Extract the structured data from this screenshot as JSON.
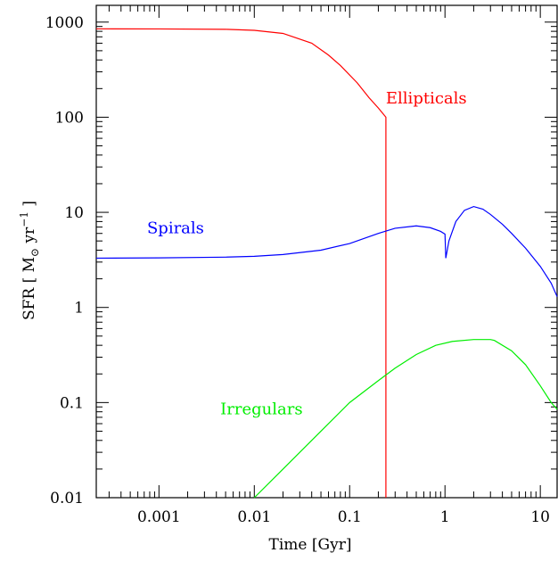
{
  "chart_data": {
    "type": "line",
    "title": "",
    "xlabel": "Time [Gyr]",
    "ylabel_parts": {
      "pre": "SFR [ M",
      "sub": "⊙",
      "mid": " yr",
      "sup": "−1",
      "post": " ]"
    },
    "xscale": "log",
    "yscale": "log",
    "xlim": [
      0.00022,
      15
    ],
    "ylim": [
      0.01,
      1500
    ],
    "grid": false,
    "legend": "none",
    "xticks": [
      {
        "value": 0.001,
        "label": "0.001"
      },
      {
        "value": 0.01,
        "label": "0.01"
      },
      {
        "value": 0.1,
        "label": "0.1"
      },
      {
        "value": 1,
        "label": "1"
      },
      {
        "value": 10,
        "label": "10"
      }
    ],
    "yticks": [
      {
        "value": 0.01,
        "label": "0.01"
      },
      {
        "value": 0.1,
        "label": "0.1"
      },
      {
        "value": 1,
        "label": "1"
      },
      {
        "value": 10,
        "label": "10"
      },
      {
        "value": 100,
        "label": "100"
      },
      {
        "value": 1000,
        "label": "1000"
      }
    ],
    "series": [
      {
        "name": "Ellipticals",
        "color": "#ff0000",
        "label_at": [
          0.24,
          140
        ],
        "points": [
          [
            0.00022,
            850
          ],
          [
            0.001,
            848
          ],
          [
            0.005,
            840
          ],
          [
            0.01,
            820
          ],
          [
            0.02,
            760
          ],
          [
            0.04,
            600
          ],
          [
            0.06,
            450
          ],
          [
            0.08,
            350
          ],
          [
            0.12,
            230
          ],
          [
            0.16,
            160
          ],
          [
            0.2,
            125
          ],
          [
            0.24,
            100
          ],
          [
            0.24,
            0.01
          ]
        ]
      },
      {
        "name": "Spirals",
        "color": "#0000ff",
        "label_at": [
          0.00075,
          6.0
        ],
        "points": [
          [
            0.00022,
            3.3
          ],
          [
            0.001,
            3.32
          ],
          [
            0.005,
            3.38
          ],
          [
            0.01,
            3.45
          ],
          [
            0.02,
            3.6
          ],
          [
            0.05,
            4.0
          ],
          [
            0.1,
            4.7
          ],
          [
            0.2,
            6.0
          ],
          [
            0.3,
            6.8
          ],
          [
            0.5,
            7.2
          ],
          [
            0.7,
            6.9
          ],
          [
            0.9,
            6.3
          ],
          [
            1.0,
            5.9
          ],
          [
            1.02,
            3.3
          ],
          [
            1.1,
            5.0
          ],
          [
            1.3,
            8.0
          ],
          [
            1.6,
            10.5
          ],
          [
            2.0,
            11.5
          ],
          [
            2.5,
            10.8
          ],
          [
            3.0,
            9.5
          ],
          [
            4.0,
            7.5
          ],
          [
            5.0,
            6.0
          ],
          [
            7.0,
            4.2
          ],
          [
            10.0,
            2.7
          ],
          [
            13.0,
            1.8
          ],
          [
            15.0,
            1.3
          ]
        ]
      },
      {
        "name": "Irregulars",
        "color": "#00ee00",
        "label_at": [
          0.0044,
          0.075
        ],
        "points": [
          [
            0.01,
            0.01
          ],
          [
            0.02,
            0.02
          ],
          [
            0.05,
            0.05
          ],
          [
            0.1,
            0.1
          ],
          [
            0.2,
            0.17
          ],
          [
            0.3,
            0.23
          ],
          [
            0.5,
            0.32
          ],
          [
            0.8,
            0.4
          ],
          [
            1.2,
            0.44
          ],
          [
            2.0,
            0.46
          ],
          [
            3.0,
            0.46
          ],
          [
            3.3,
            0.45
          ],
          [
            5.0,
            0.35
          ],
          [
            7.0,
            0.25
          ],
          [
            10.0,
            0.15
          ],
          [
            13.0,
            0.1
          ],
          [
            15.0,
            0.085
          ]
        ]
      }
    ]
  }
}
